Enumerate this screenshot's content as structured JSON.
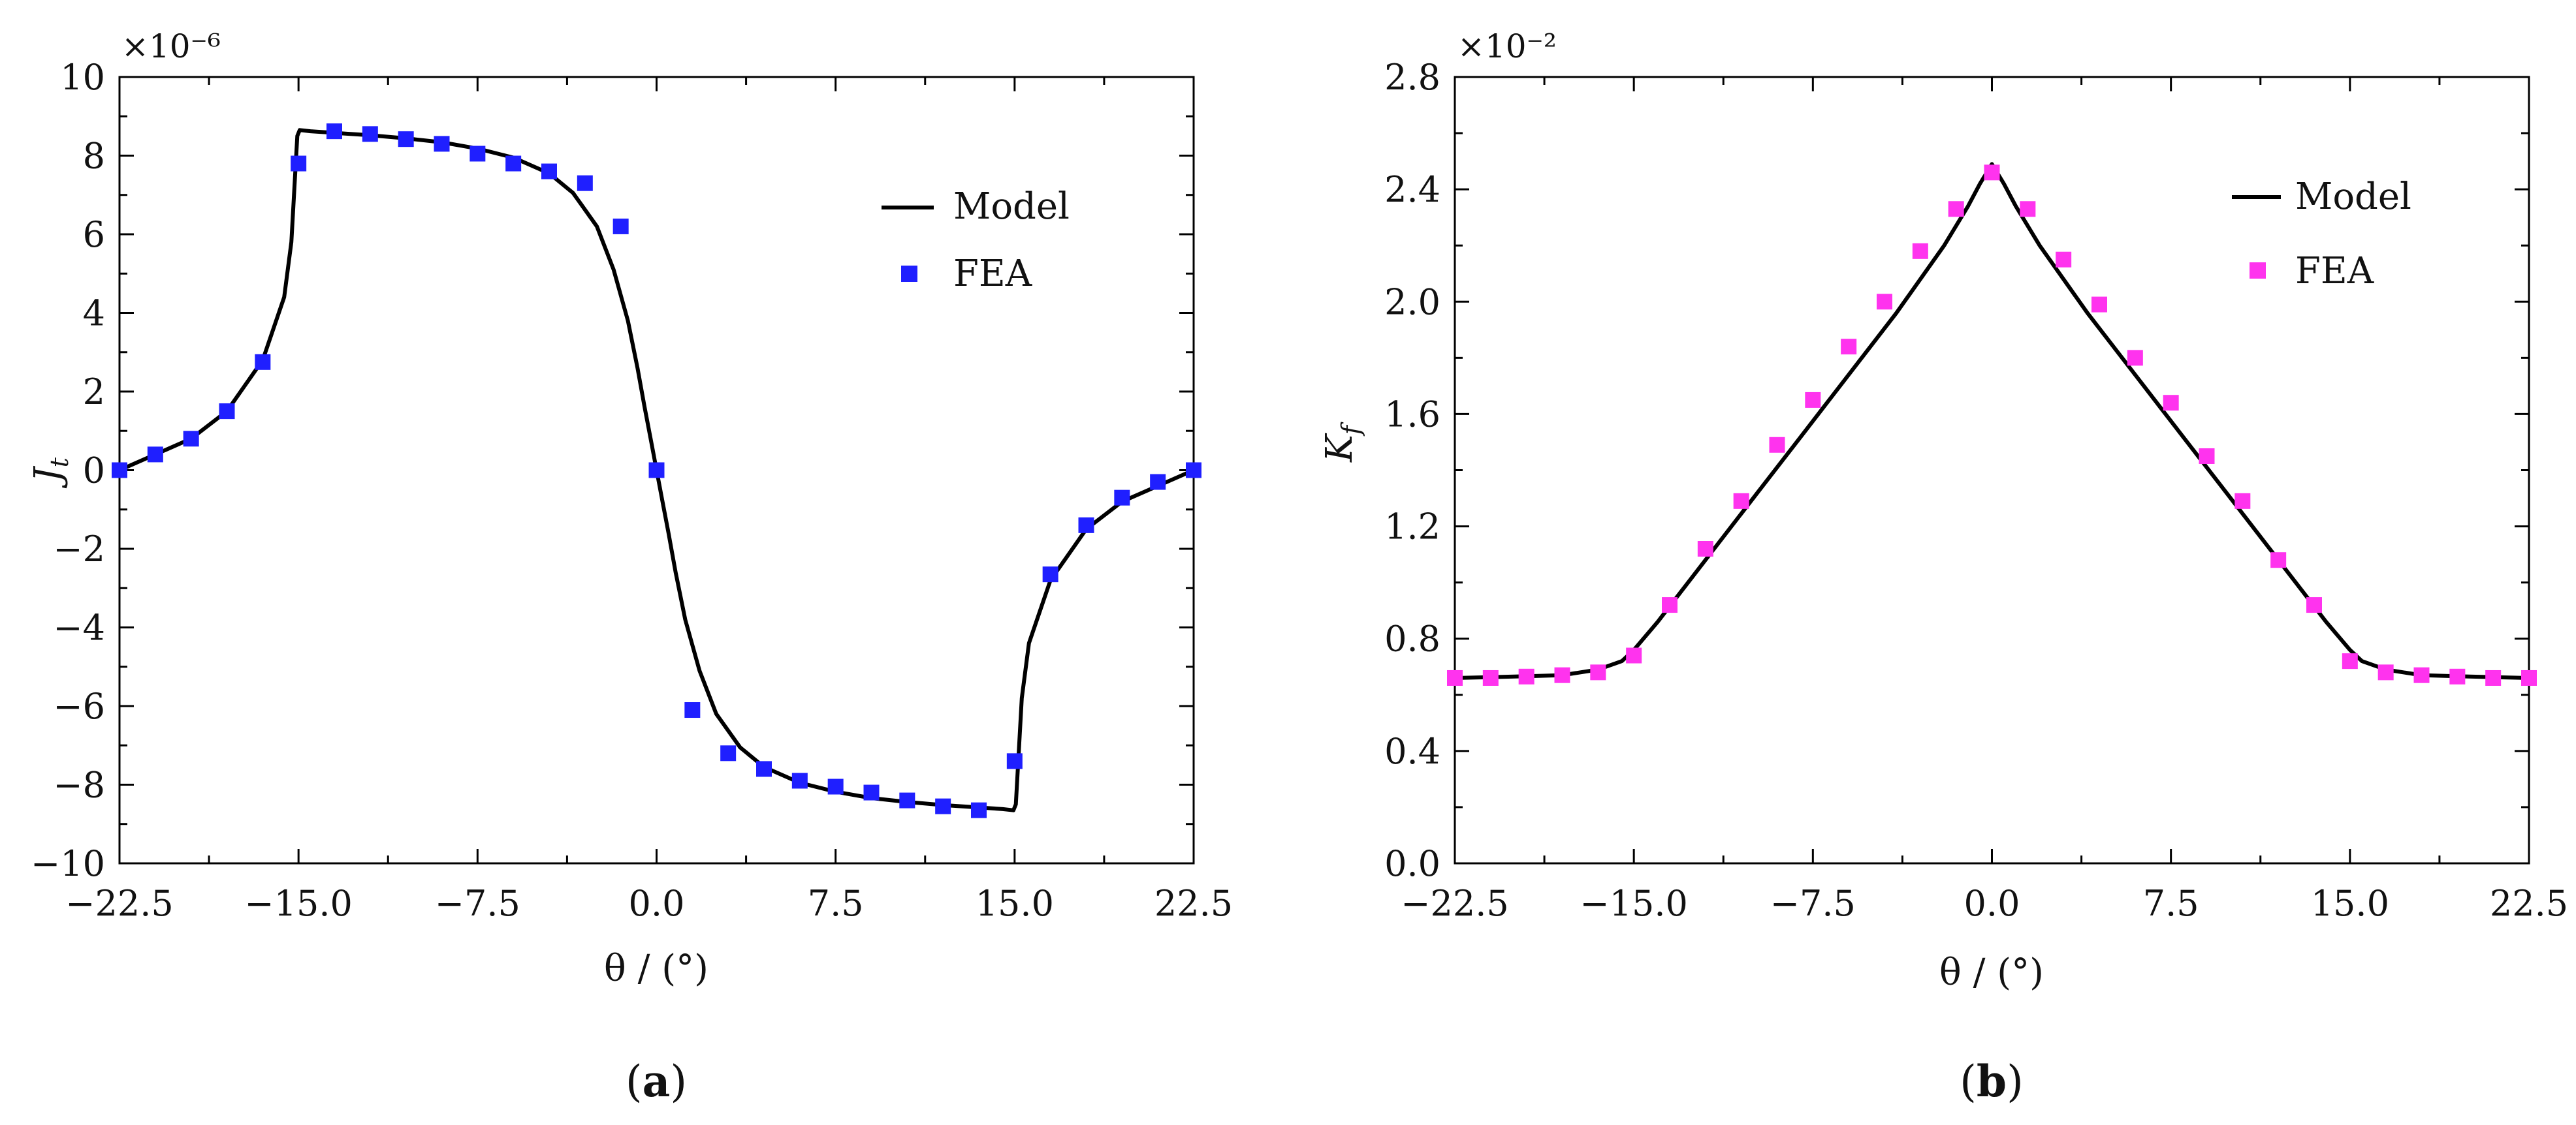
{
  "chart_data": [
    {
      "type": "line",
      "panel_label": "(a)",
      "xlabel": "θ / (°)",
      "ylabel": "J_t",
      "ylabel_main": "J",
      "ylabel_sub": "t",
      "y_multiplier": "×10⁻⁶",
      "xlim": [
        -22.5,
        22.5
      ],
      "ylim": [
        -10,
        10
      ],
      "x_ticks": [
        -22.5,
        -15.0,
        -7.5,
        0.0,
        7.5,
        15.0,
        22.5
      ],
      "x_tick_labels": [
        "−22.5",
        "−15.0",
        "−7.5",
        "0.0",
        "7.5",
        "15.0",
        "22.5"
      ],
      "y_ticks": [
        -10,
        -8,
        -6,
        -4,
        -2,
        0,
        2,
        4,
        6,
        8,
        10
      ],
      "y_tick_labels": [
        "−10",
        "−8",
        "−6",
        "−4",
        "−2",
        "0",
        "2",
        "4",
        "6",
        "8",
        "10"
      ],
      "grid": false,
      "legend_position": "top-right",
      "series": [
        {
          "name": "Model",
          "kind": "line",
          "color": "#000000",
          "x": [
            -22.5,
            -21.0,
            -19.5,
            -18.0,
            -16.5,
            -15.6,
            -15.3,
            -15.05,
            -14.95,
            -14.5,
            -13.5,
            -12.0,
            -10.5,
            -9.0,
            -7.5,
            -6.0,
            -4.5,
            -3.5,
            -2.5,
            -1.8,
            -1.2,
            -0.8,
            -0.5,
            -0.25,
            0.0,
            0.25,
            0.5,
            0.8,
            1.2,
            1.8,
            2.5,
            3.5,
            4.5,
            6.0,
            7.5,
            9.0,
            10.5,
            12.0,
            13.5,
            14.5,
            14.95,
            15.05,
            15.3,
            15.6,
            16.5,
            18.0,
            19.5,
            21.0,
            22.5
          ],
          "values": [
            0.0,
            0.4,
            0.8,
            1.5,
            2.8,
            4.4,
            5.8,
            8.5,
            8.65,
            8.62,
            8.58,
            8.52,
            8.44,
            8.34,
            8.18,
            7.95,
            7.55,
            7.05,
            6.2,
            5.1,
            3.8,
            2.6,
            1.6,
            0.8,
            0.0,
            -0.8,
            -1.6,
            -2.6,
            -3.8,
            -5.1,
            -6.2,
            -7.05,
            -7.55,
            -7.95,
            -8.18,
            -8.34,
            -8.44,
            -8.52,
            -8.58,
            -8.62,
            -8.65,
            -8.5,
            -5.8,
            -4.4,
            -2.8,
            -1.5,
            -0.8,
            -0.4,
            0.0
          ]
        },
        {
          "name": "FEA",
          "kind": "scatter",
          "color": "#1f1fff",
          "x": [
            -22.5,
            -21.0,
            -19.5,
            -18.0,
            -16.5,
            -15.0,
            -13.5,
            -12.0,
            -10.5,
            -9.0,
            -7.5,
            -6.0,
            -4.5,
            -3.0,
            -1.5,
            0.0,
            1.5,
            3.0,
            4.5,
            6.0,
            7.5,
            9.0,
            10.5,
            12.0,
            13.5,
            15.0,
            16.5,
            18.0,
            19.5,
            21.0,
            22.5
          ],
          "values": [
            0.0,
            0.4,
            0.8,
            1.5,
            2.75,
            7.8,
            8.62,
            8.55,
            8.42,
            8.3,
            8.05,
            7.8,
            7.6,
            7.3,
            6.2,
            0.0,
            -6.1,
            -7.2,
            -7.6,
            -7.9,
            -8.05,
            -8.2,
            -8.4,
            -8.55,
            -8.65,
            -7.4,
            -2.65,
            -1.4,
            -0.7,
            -0.3,
            0.0
          ]
        }
      ]
    },
    {
      "type": "line",
      "panel_label": "(b)",
      "xlabel": "θ / (°)",
      "ylabel": "K_f",
      "ylabel_main": "K",
      "ylabel_sub": "f",
      "y_multiplier": "×10⁻²",
      "xlim": [
        -22.5,
        22.5
      ],
      "ylim": [
        0.0,
        2.8
      ],
      "x_ticks": [
        -22.5,
        -15.0,
        -7.5,
        0.0,
        7.5,
        15.0,
        22.5
      ],
      "x_tick_labels": [
        "−22.5",
        "−15.0",
        "−7.5",
        "0.0",
        "7.5",
        "15.0",
        "22.5"
      ],
      "y_ticks": [
        0.0,
        0.4,
        0.8,
        1.2,
        1.6,
        2.0,
        2.4,
        2.8
      ],
      "y_tick_labels": [
        "0.0",
        "0.4",
        "0.8",
        "1.2",
        "1.6",
        "2.0",
        "2.4",
        "2.8"
      ],
      "grid": false,
      "legend_position": "top-right",
      "series": [
        {
          "name": "Model",
          "kind": "line",
          "color": "#000000",
          "x": [
            -22.5,
            -20.0,
            -18.0,
            -16.5,
            -15.5,
            -15.0,
            -14.0,
            -12.0,
            -10.0,
            -8.0,
            -6.0,
            -4.0,
            -2.0,
            -1.0,
            -0.5,
            0.0,
            0.5,
            1.0,
            2.0,
            4.0,
            6.0,
            8.0,
            10.0,
            12.0,
            14.0,
            15.0,
            15.5,
            16.5,
            18.0,
            20.0,
            22.5
          ],
          "values": [
            0.66,
            0.665,
            0.67,
            0.69,
            0.72,
            0.76,
            0.86,
            1.08,
            1.3,
            1.52,
            1.74,
            1.96,
            2.2,
            2.34,
            2.42,
            2.49,
            2.42,
            2.34,
            2.2,
            1.96,
            1.74,
            1.52,
            1.3,
            1.08,
            0.86,
            0.76,
            0.72,
            0.69,
            0.67,
            0.665,
            0.66
          ]
        },
        {
          "name": "FEA",
          "kind": "scatter",
          "color": "#ff33ee",
          "x": [
            -22.5,
            -21.0,
            -19.5,
            -18.0,
            -16.5,
            -15.0,
            -13.5,
            -12.0,
            -10.5,
            -9.0,
            -7.5,
            -6.0,
            -4.5,
            -3.0,
            -1.5,
            0.0,
            1.5,
            3.0,
            4.5,
            6.0,
            7.5,
            9.0,
            10.5,
            12.0,
            13.5,
            15.0,
            16.5,
            18.0,
            19.5,
            21.0,
            22.5
          ],
          "values": [
            0.66,
            0.66,
            0.665,
            0.67,
            0.68,
            0.74,
            0.92,
            1.12,
            1.29,
            1.49,
            1.65,
            1.84,
            2.0,
            2.18,
            2.33,
            2.46,
            2.33,
            2.15,
            1.99,
            1.8,
            1.64,
            1.45,
            1.29,
            1.08,
            0.92,
            0.72,
            0.68,
            0.67,
            0.665,
            0.66,
            0.66
          ]
        }
      ]
    }
  ]
}
